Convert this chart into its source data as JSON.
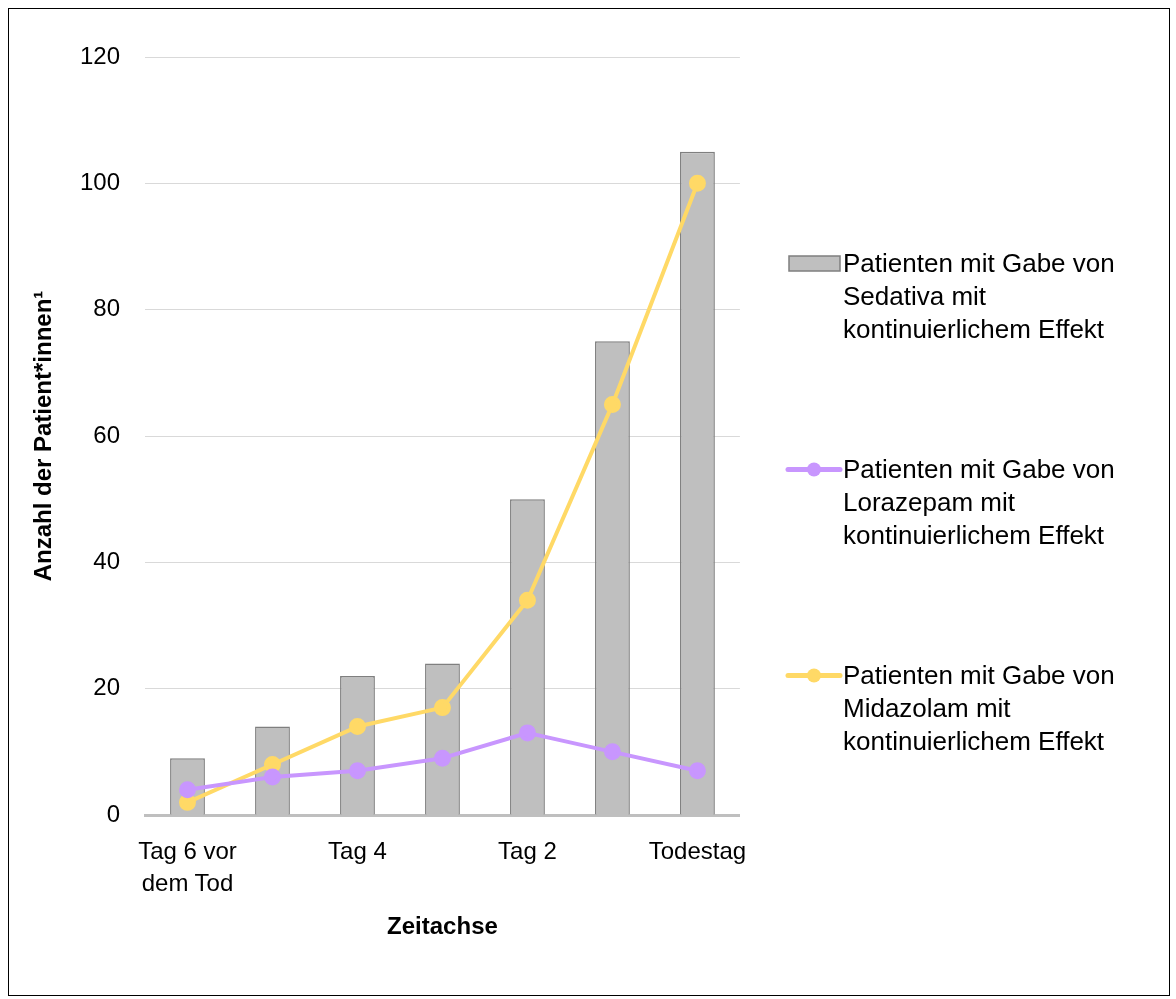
{
  "chart_data": {
    "type": "bar",
    "xlabel": "Zeitachse",
    "ylabel": "Anzahl der Patient*innen¹",
    "categories": [
      "Tag 6 vor dem Tod",
      null,
      "Tag 4",
      null,
      "Tag 2",
      null,
      "Todestag"
    ],
    "series": [
      {
        "name": "Patienten mit Gabe von Sedativa mit kontinuierlichem Effekt",
        "color": "#bfbfbf",
        "values": [
          9,
          14,
          22,
          24,
          50,
          75,
          105
        ]
      },
      {
        "name": "Patienten mit Gabe von Lorazepam mit kontinuierlichem Effekt",
        "type": "line",
        "color": "#c896fe",
        "values": [
          4,
          6,
          7,
          9,
          13,
          10,
          7
        ]
      },
      {
        "name": "Patienten mit Gabe von Midazolam mit kontinuierlichem Effekt",
        "type": "line",
        "color": "#ffd966",
        "values": [
          2,
          8,
          14,
          17,
          34,
          65,
          100
        ]
      }
    ],
    "ylim": [
      0,
      120
    ],
    "yticks": [
      0,
      20,
      40,
      60,
      80,
      100,
      120
    ],
    "grid": "y",
    "legend": "right",
    "marker": "circle"
  }
}
